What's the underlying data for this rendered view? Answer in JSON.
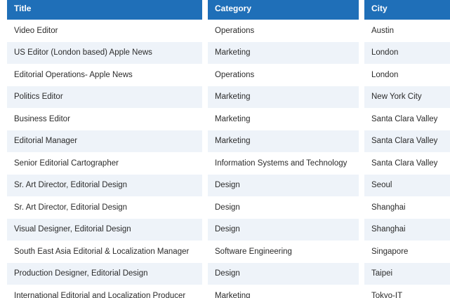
{
  "table": {
    "headers": [
      "Title",
      "Category",
      "City"
    ],
    "rows": [
      [
        "Video Editor",
        "Operations",
        "Austin"
      ],
      [
        "US Editor (London based) Apple News",
        "Marketing",
        "London"
      ],
      [
        "Editorial Operations- Apple News",
        "Operations",
        "London"
      ],
      [
        "Politics Editor",
        "Marketing",
        "New York City"
      ],
      [
        "Business Editor",
        "Marketing",
        "Santa Clara Valley"
      ],
      [
        "Editorial Manager",
        "Marketing",
        "Santa Clara Valley"
      ],
      [
        "Senior Editorial Cartographer",
        "Information Systems and Technology",
        "Santa Clara Valley"
      ],
      [
        "Sr. Art Director, Editorial Design",
        "Design",
        "Seoul"
      ],
      [
        "Sr. Art Director, Editorial Design",
        "Design",
        "Shanghai"
      ],
      [
        "Visual Designer, Editorial Design",
        "Design",
        "Shanghai"
      ],
      [
        "South East Asia Editorial & Localization Manager",
        "Software Engineering",
        "Singapore"
      ],
      [
        "Production Designer, Editorial Design",
        "Design",
        "Taipei"
      ],
      [
        "International Editorial and Localization Producer",
        "Marketing",
        "Tokyo-IT"
      ]
    ]
  },
  "colors": {
    "header_bg": "#1f6fb8",
    "header_text": "#ffffff",
    "alt_row_bg": "#eef3f9",
    "row_bg": "#ffffff",
    "cell_text": "#2b2b2b"
  }
}
